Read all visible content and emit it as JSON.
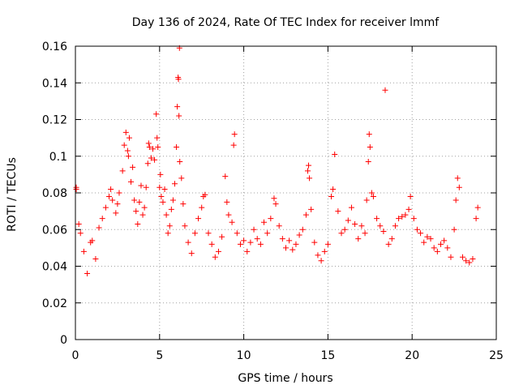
{
  "chart_data": {
    "type": "scatter",
    "title": "Day 136 of 2024, Rate Of TEC Index for receiver lmmf",
    "xlabel": "GPS time / hours",
    "ylabel": "ROTI / TECUs",
    "xlim": [
      0,
      25
    ],
    "ylim": [
      0,
      0.16
    ],
    "xticks": [
      0,
      5,
      10,
      15,
      20,
      25
    ],
    "xtick_labels": [
      "0",
      "5",
      "10",
      "15",
      "20",
      "25"
    ],
    "yticks": [
      0,
      0.02,
      0.04,
      0.06,
      0.08,
      0.1,
      0.12,
      0.14,
      0.16
    ],
    "ytick_labels": [
      "0",
      "0.02",
      "0.04",
      "0.06",
      "0.08",
      "0.1",
      "0.12",
      "0.14",
      "0.16"
    ],
    "grid": true,
    "marker": "plus",
    "series": [
      {
        "name": "ROTI",
        "color": "#ff0000",
        "points": [
          [
            0.05,
            0.083
          ],
          [
            0.05,
            0.082
          ],
          [
            0.2,
            0.063
          ],
          [
            0.3,
            0.058
          ],
          [
            0.5,
            0.048
          ],
          [
            0.7,
            0.036
          ],
          [
            0.9,
            0.053
          ],
          [
            1.0,
            0.054
          ],
          [
            1.2,
            0.044
          ],
          [
            1.4,
            0.061
          ],
          [
            1.6,
            0.066
          ],
          [
            1.8,
            0.072
          ],
          [
            2.0,
            0.078
          ],
          [
            2.1,
            0.082
          ],
          [
            2.2,
            0.076
          ],
          [
            2.4,
            0.069
          ],
          [
            2.5,
            0.074
          ],
          [
            2.6,
            0.08
          ],
          [
            2.8,
            0.092
          ],
          [
            2.9,
            0.106
          ],
          [
            3.0,
            0.113
          ],
          [
            3.1,
            0.103
          ],
          [
            3.15,
            0.1
          ],
          [
            3.2,
            0.11
          ],
          [
            3.3,
            0.086
          ],
          [
            3.4,
            0.094
          ],
          [
            3.5,
            0.076
          ],
          [
            3.6,
            0.07
          ],
          [
            3.7,
            0.063
          ],
          [
            3.8,
            0.075
          ],
          [
            3.9,
            0.084
          ],
          [
            4.0,
            0.068
          ],
          [
            4.1,
            0.072
          ],
          [
            4.2,
            0.083
          ],
          [
            4.3,
            0.096
          ],
          [
            4.35,
            0.107
          ],
          [
            4.4,
            0.105
          ],
          [
            4.5,
            0.099
          ],
          [
            4.6,
            0.104
          ],
          [
            4.7,
            0.098
          ],
          [
            4.8,
            0.123
          ],
          [
            4.85,
            0.11
          ],
          [
            4.9,
            0.105
          ],
          [
            5.0,
            0.083
          ],
          [
            5.05,
            0.09
          ],
          [
            5.1,
            0.078
          ],
          [
            5.2,
            0.075
          ],
          [
            5.3,
            0.082
          ],
          [
            5.4,
            0.068
          ],
          [
            5.5,
            0.058
          ],
          [
            5.6,
            0.062
          ],
          [
            5.7,
            0.071
          ],
          [
            5.8,
            0.076
          ],
          [
            5.9,
            0.085
          ],
          [
            6.0,
            0.105
          ],
          [
            6.05,
            0.127
          ],
          [
            6.1,
            0.143
          ],
          [
            6.12,
            0.142
          ],
          [
            6.15,
            0.122
          ],
          [
            6.18,
            0.159
          ],
          [
            6.2,
            0.097
          ],
          [
            6.3,
            0.088
          ],
          [
            6.4,
            0.074
          ],
          [
            6.5,
            0.062
          ],
          [
            6.7,
            0.053
          ],
          [
            6.9,
            0.047
          ],
          [
            7.1,
            0.058
          ],
          [
            7.3,
            0.066
          ],
          [
            7.5,
            0.072
          ],
          [
            7.6,
            0.078
          ],
          [
            7.7,
            0.079
          ],
          [
            7.9,
            0.058
          ],
          [
            8.1,
            0.052
          ],
          [
            8.3,
            0.045
          ],
          [
            8.5,
            0.048
          ],
          [
            8.7,
            0.056
          ],
          [
            8.9,
            0.089
          ],
          [
            9.0,
            0.075
          ],
          [
            9.1,
            0.068
          ],
          [
            9.3,
            0.064
          ],
          [
            9.4,
            0.106
          ],
          [
            9.45,
            0.112
          ],
          [
            9.6,
            0.058
          ],
          [
            9.8,
            0.052
          ],
          [
            10.0,
            0.054
          ],
          [
            10.2,
            0.048
          ],
          [
            10.4,
            0.053
          ],
          [
            10.6,
            0.06
          ],
          [
            10.8,
            0.055
          ],
          [
            11.0,
            0.052
          ],
          [
            11.2,
            0.064
          ],
          [
            11.4,
            0.058
          ],
          [
            11.6,
            0.066
          ],
          [
            11.8,
            0.077
          ],
          [
            11.9,
            0.074
          ],
          [
            12.1,
            0.062
          ],
          [
            12.3,
            0.055
          ],
          [
            12.5,
            0.05
          ],
          [
            12.7,
            0.054
          ],
          [
            12.9,
            0.049
          ],
          [
            13.1,
            0.052
          ],
          [
            13.3,
            0.057
          ],
          [
            13.5,
            0.06
          ],
          [
            13.7,
            0.068
          ],
          [
            13.8,
            0.092
          ],
          [
            13.85,
            0.095
          ],
          [
            13.9,
            0.088
          ],
          [
            14.0,
            0.071
          ],
          [
            14.2,
            0.053
          ],
          [
            14.4,
            0.046
          ],
          [
            14.6,
            0.043
          ],
          [
            14.8,
            0.048
          ],
          [
            15.0,
            0.052
          ],
          [
            15.2,
            0.078
          ],
          [
            15.3,
            0.082
          ],
          [
            15.4,
            0.101
          ],
          [
            15.6,
            0.07
          ],
          [
            15.8,
            0.058
          ],
          [
            16.0,
            0.06
          ],
          [
            16.2,
            0.065
          ],
          [
            16.4,
            0.072
          ],
          [
            16.6,
            0.063
          ],
          [
            16.8,
            0.055
          ],
          [
            17.0,
            0.062
          ],
          [
            17.2,
            0.058
          ],
          [
            17.3,
            0.076
          ],
          [
            17.4,
            0.097
          ],
          [
            17.45,
            0.112
          ],
          [
            17.5,
            0.105
          ],
          [
            17.6,
            0.08
          ],
          [
            17.7,
            0.078
          ],
          [
            17.9,
            0.066
          ],
          [
            18.1,
            0.062
          ],
          [
            18.3,
            0.059
          ],
          [
            18.4,
            0.136
          ],
          [
            18.6,
            0.052
          ],
          [
            18.8,
            0.055
          ],
          [
            19.0,
            0.062
          ],
          [
            19.2,
            0.066
          ],
          [
            19.4,
            0.067
          ],
          [
            19.6,
            0.068
          ],
          [
            19.8,
            0.071
          ],
          [
            19.9,
            0.078
          ],
          [
            20.1,
            0.066
          ],
          [
            20.3,
            0.06
          ],
          [
            20.5,
            0.058
          ],
          [
            20.7,
            0.053
          ],
          [
            20.9,
            0.056
          ],
          [
            21.1,
            0.055
          ],
          [
            21.3,
            0.05
          ],
          [
            21.5,
            0.048
          ],
          [
            21.7,
            0.052
          ],
          [
            21.9,
            0.054
          ],
          [
            22.1,
            0.05
          ],
          [
            22.3,
            0.045
          ],
          [
            22.5,
            0.06
          ],
          [
            22.6,
            0.076
          ],
          [
            22.7,
            0.088
          ],
          [
            22.8,
            0.083
          ],
          [
            23.0,
            0.045
          ],
          [
            23.2,
            0.043
          ],
          [
            23.4,
            0.042
          ],
          [
            23.6,
            0.044
          ],
          [
            23.8,
            0.066
          ],
          [
            23.9,
            0.072
          ]
        ]
      }
    ]
  }
}
